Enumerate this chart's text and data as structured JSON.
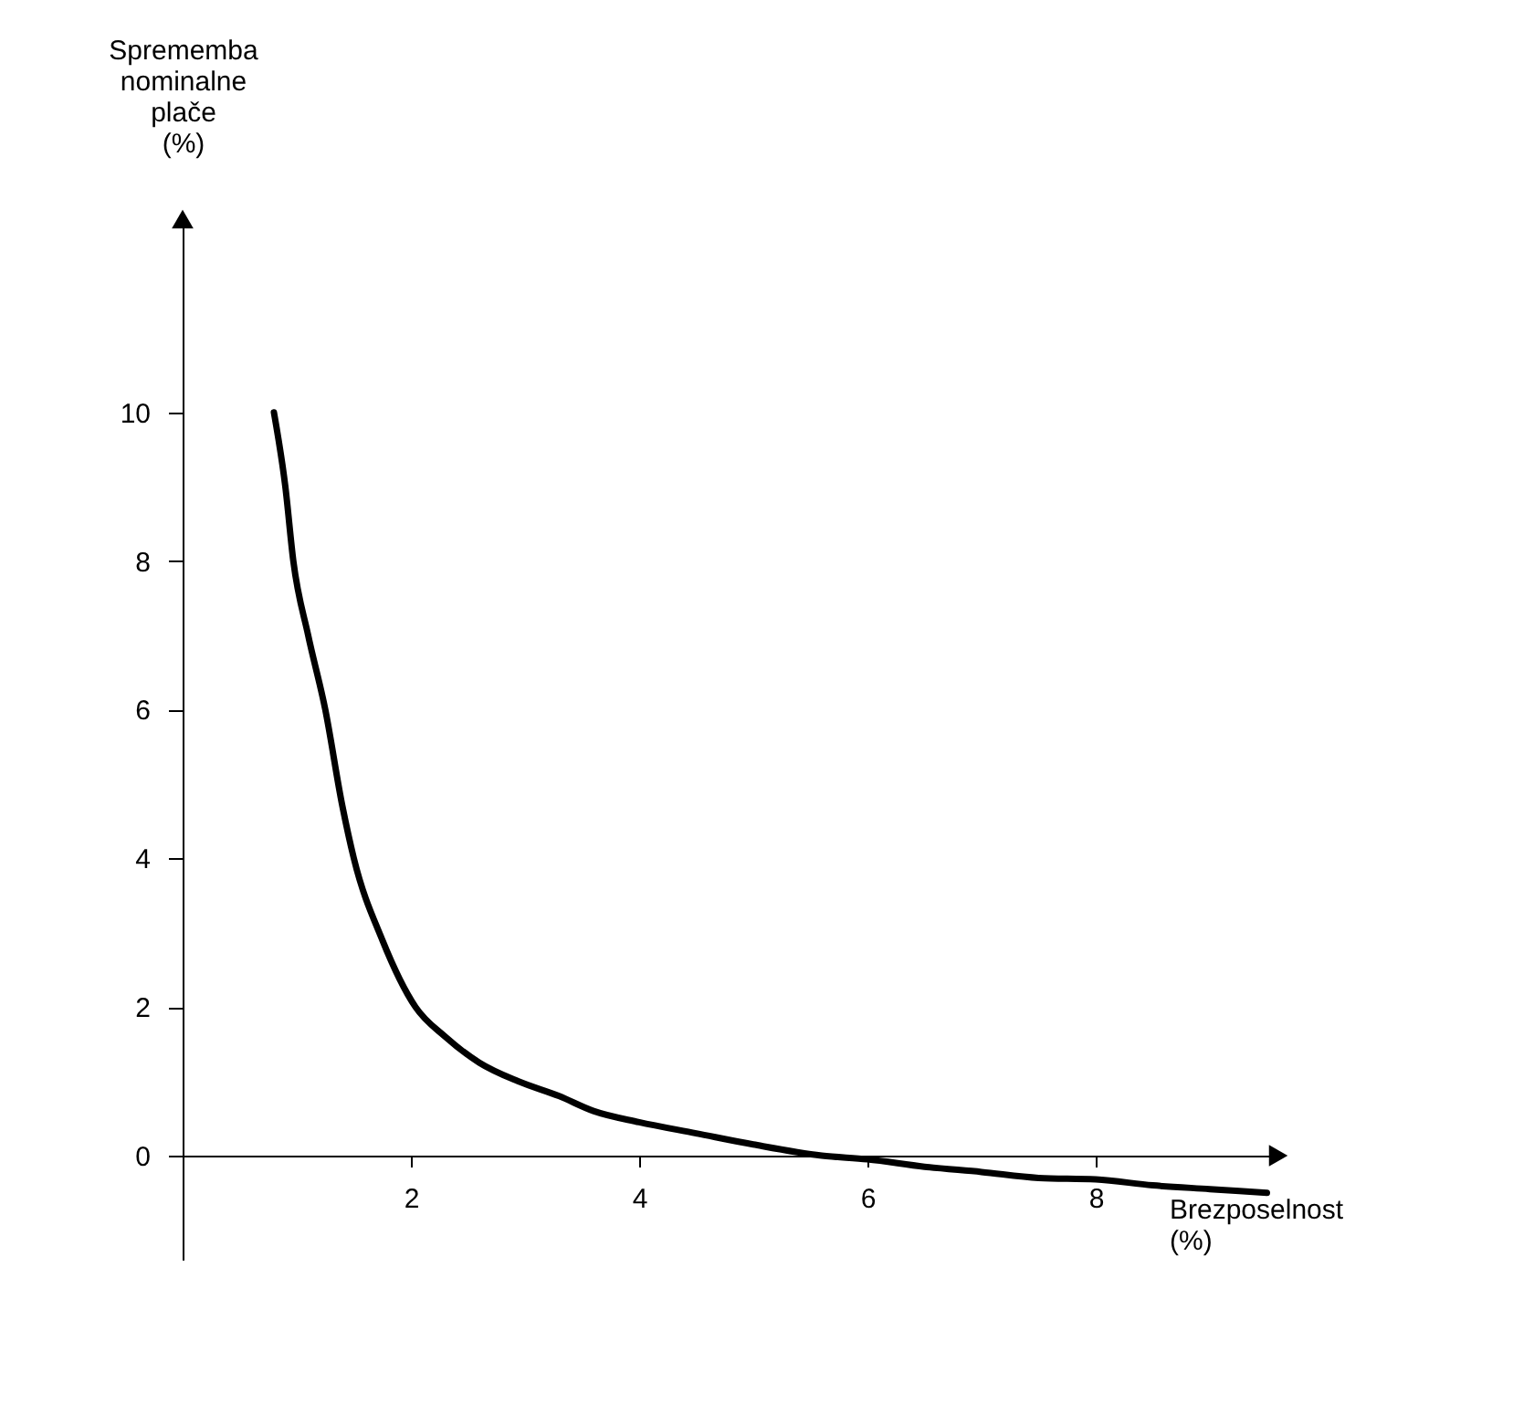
{
  "chart_data": {
    "type": "line",
    "xlabel": "Brezposelnost\n(%)",
    "ylabel": "Sprememba\nnominalne\nplače\n(%)",
    "x": [
      0.8,
      0.9,
      0.97,
      1.1,
      1.25,
      1.4,
      1.5,
      1.75,
      2.04,
      2.3,
      2.6,
      2.94,
      3.3,
      3.6,
      4.0,
      4.5,
      5.0,
      5.6,
      6.0,
      6.5,
      7.0,
      7.5,
      8.0,
      8.5,
      9.0,
      9.5
    ],
    "series": [
      {
        "color": "#000000",
        "values": [
          10,
          9.0,
          8,
          7.0,
          6,
          4.7,
          4,
          2.9,
          2,
          1.6,
          1.25,
          1,
          0.8,
          0.6,
          0.45,
          0.3,
          0.15,
          0,
          -0.05,
          -0.15,
          -0.22,
          -0.3,
          -0.32,
          -0.4,
          -0.45,
          -0.5
        ]
      }
    ],
    "xlim": [
      0,
      9.6
    ],
    "ylim": [
      -1.4,
      12.6
    ],
    "xticks": [
      2,
      4,
      6,
      8
    ],
    "yticks": [
      0,
      2,
      4,
      6,
      8,
      10
    ],
    "grid": false,
    "marker": "none",
    "line_style": "solid"
  }
}
